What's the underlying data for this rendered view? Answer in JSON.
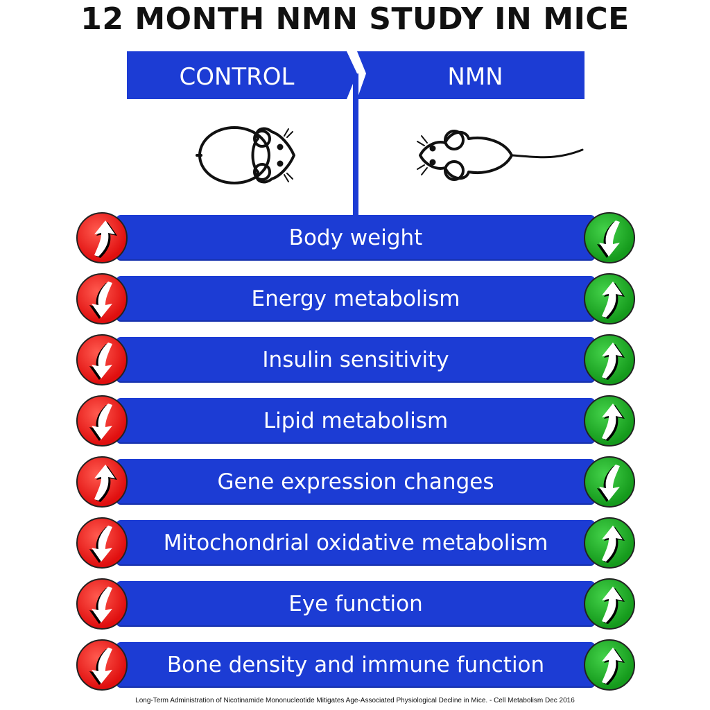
{
  "title": "12 MONTH NMN STUDY IN MICE",
  "groups": {
    "control": "CONTROL",
    "treatment": "NMN"
  },
  "rows": [
    {
      "label": "Body weight",
      "control": "up",
      "nmn": "down"
    },
    {
      "label": "Energy metabolism",
      "control": "down",
      "nmn": "up"
    },
    {
      "label": "Insulin sensitivity",
      "control": "down",
      "nmn": "up"
    },
    {
      "label": "Lipid metabolism",
      "control": "down",
      "nmn": "up"
    },
    {
      "label": "Gene expression changes",
      "control": "up",
      "nmn": "down"
    },
    {
      "label": "Mitochondrial oxidative metabolism",
      "control": "down",
      "nmn": "up"
    },
    {
      "label": "Eye function",
      "control": "down",
      "nmn": "up"
    },
    {
      "label": "Bone density and immune function",
      "control": "down",
      "nmn": "up"
    }
  ],
  "citation": "Long-Term Administration of Nicotinamide Mononucleotide Mitigates Age-Associated Physiological Decline in Mice. - Cell Metabolism Dec 2016",
  "colors": {
    "bar": "#1c3cd4",
    "control_circle": "#e00f0f",
    "nmn_circle": "#159a1c"
  },
  "icons": {
    "control_mouse": "fat-mouse-icon",
    "nmn_mouse": "slim-mouse-icon",
    "arrow_up": "arrow-up-icon",
    "arrow_down": "arrow-down-icon"
  }
}
